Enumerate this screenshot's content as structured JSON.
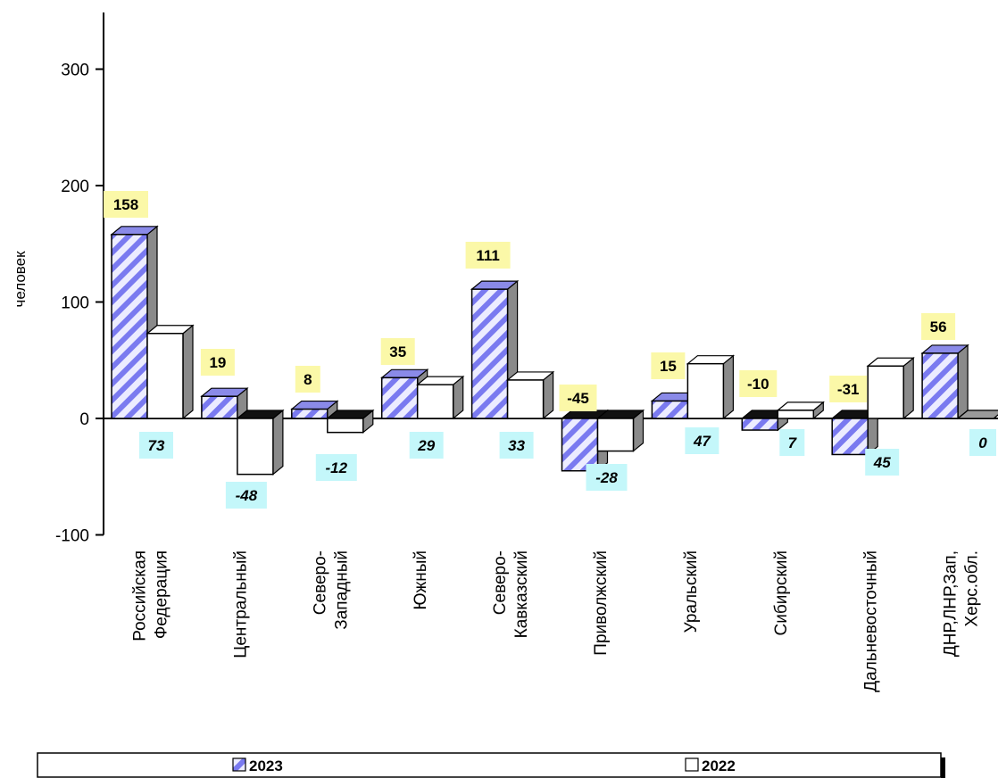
{
  "chart_data": {
    "type": "bar",
    "title": "",
    "xlabel": "",
    "ylabel": "человек",
    "ylim": [
      -100,
      350
    ],
    "yticks": [
      -100,
      0,
      100,
      200,
      300
    ],
    "categories": [
      [
        "Российская",
        "Федерация"
      ],
      [
        "Центральный"
      ],
      [
        "Северо-",
        "Западный"
      ],
      [
        "Южный"
      ],
      [
        "Северо-",
        "Кавказский"
      ],
      [
        "Приволжский"
      ],
      [
        "Уральский"
      ],
      [
        "Сибирский"
      ],
      [
        "Дальневосточный"
      ],
      [
        "ДНР,ЛНР,Зап,",
        "Херс.обл."
      ]
    ],
    "series": [
      {
        "name": "2023",
        "values": [
          158,
          19,
          8,
          35,
          111,
          -45,
          15,
          -10,
          -31,
          56
        ],
        "color": "#7a7af0",
        "pattern": "diagonal-hatch"
      },
      {
        "name": "2022",
        "values": [
          73,
          -48,
          -12,
          29,
          33,
          -28,
          47,
          7,
          45,
          0
        ],
        "color": "#ffffff",
        "pattern": "solid"
      }
    ],
    "data_labels": {
      "2023": [
        "158",
        "19",
        "8",
        "35",
        "111",
        "-45",
        "15",
        "-10",
        "-31",
        "56"
      ],
      "2022": [
        "73",
        "-48",
        "-12",
        "29",
        "33",
        "-28",
        "47",
        "7",
        "45",
        "0"
      ]
    },
    "label_colors": {
      "2023": "#fbf8a8",
      "2022": "#c4f7fa"
    },
    "legend": {
      "placement": "bottom",
      "entries": [
        "2023",
        "2022"
      ]
    },
    "grid": false
  }
}
